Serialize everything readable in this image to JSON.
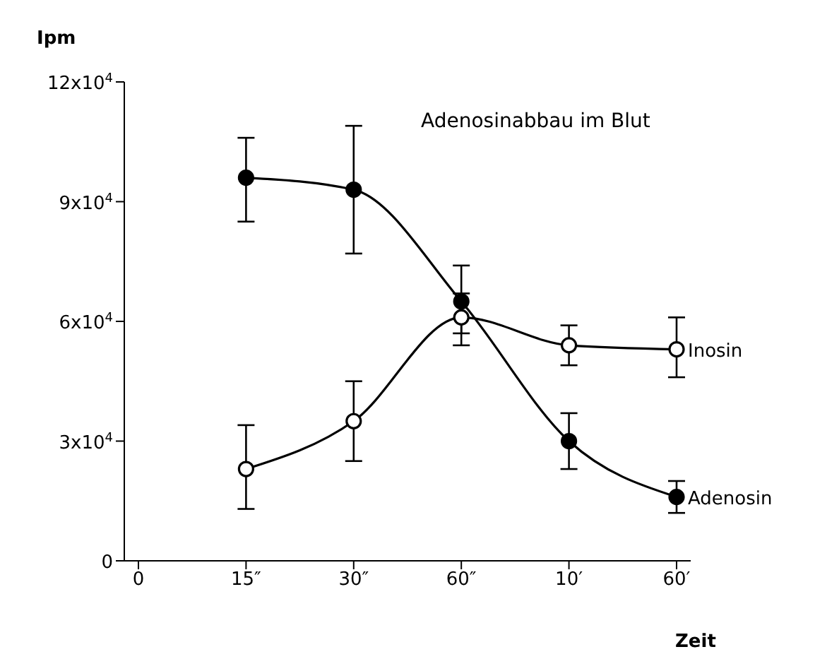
{
  "chart_data": {
    "type": "line",
    "title": "Adenosinabbau im Blut",
    "ylabel": "Ipm",
    "xlabel": "Zeit",
    "categories": [
      "0",
      "15″",
      "30″",
      "60″",
      "10′",
      "60′"
    ],
    "series": [
      {
        "name": "Adenosin",
        "color": "#000000",
        "marker": "circle",
        "values": [
          null,
          96000,
          93000,
          65000,
          30000,
          16000
        ],
        "errors": [
          null,
          [
            85000,
            106000
          ],
          [
            77000,
            109000
          ],
          [
            57000,
            74000
          ],
          [
            23000,
            37000
          ],
          [
            12000,
            20000
          ]
        ]
      },
      {
        "name": "Inosin",
        "color": "#000000",
        "marker": "circle",
        "values": [
          null,
          23000,
          35000,
          61000,
          54000,
          53000
        ],
        "errors": [
          null,
          [
            13000,
            34000
          ],
          [
            25000,
            45000
          ],
          [
            54000,
            67000
          ],
          [
            49000,
            59000
          ],
          [
            46000,
            61000
          ]
        ]
      }
    ],
    "ylim": [
      0,
      120000
    ],
    "yticks": [
      {
        "value": 0,
        "label": "0"
      },
      {
        "value": 30000,
        "label": "3x10$^{4}$"
      },
      {
        "value": 60000,
        "label": "6x10$^{4}$"
      },
      {
        "value": 90000,
        "label": "9x10$^{4}$"
      },
      {
        "value": 120000,
        "label": "12x10$^{4}$"
      }
    ],
    "grid": false,
    "legend": false,
    "line_style": "solid"
  }
}
